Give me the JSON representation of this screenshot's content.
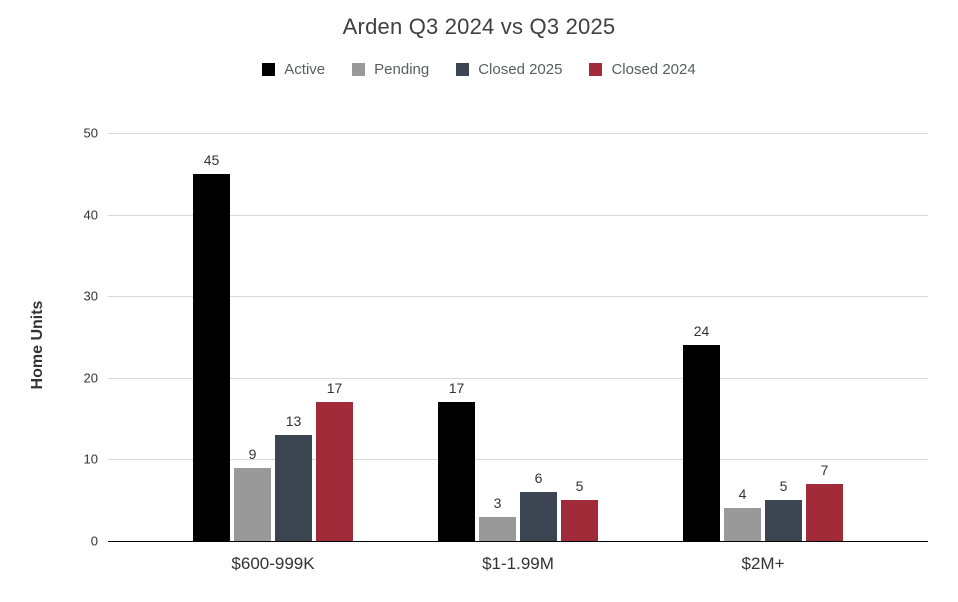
{
  "title": "Arden Q3 2024 vs Q3 2025",
  "chart_data": {
    "type": "bar",
    "title": "Arden Q3 2024 vs Q3 2025",
    "categories": [
      "$600-999K",
      "$1-1.99M",
      "$2M+"
    ],
    "series": [
      {
        "name": "Active",
        "color": "#000000",
        "values": [
          45,
          17,
          24
        ]
      },
      {
        "name": "Pending",
        "color": "#999999",
        "values": [
          9,
          3,
          4
        ]
      },
      {
        "name": "Closed 2025",
        "color": "#3c4653",
        "values": [
          13,
          6,
          5
        ]
      },
      {
        "name": "Closed 2024",
        "color": "#a12b38",
        "values": [
          17,
          5,
          7
        ]
      }
    ],
    "xlabel": "",
    "ylabel": "Home Units",
    "ylim": [
      0,
      50
    ],
    "yticks": [
      0,
      10,
      20,
      30,
      40,
      50
    ],
    "grid": true,
    "legend_position": "top",
    "data_labels": true
  },
  "colors": {
    "gridline": "#d9d9d9",
    "axis": "#000000",
    "title_text": "#404042",
    "legend_text": "#5a5d61",
    "tick_text": "#333333"
  }
}
